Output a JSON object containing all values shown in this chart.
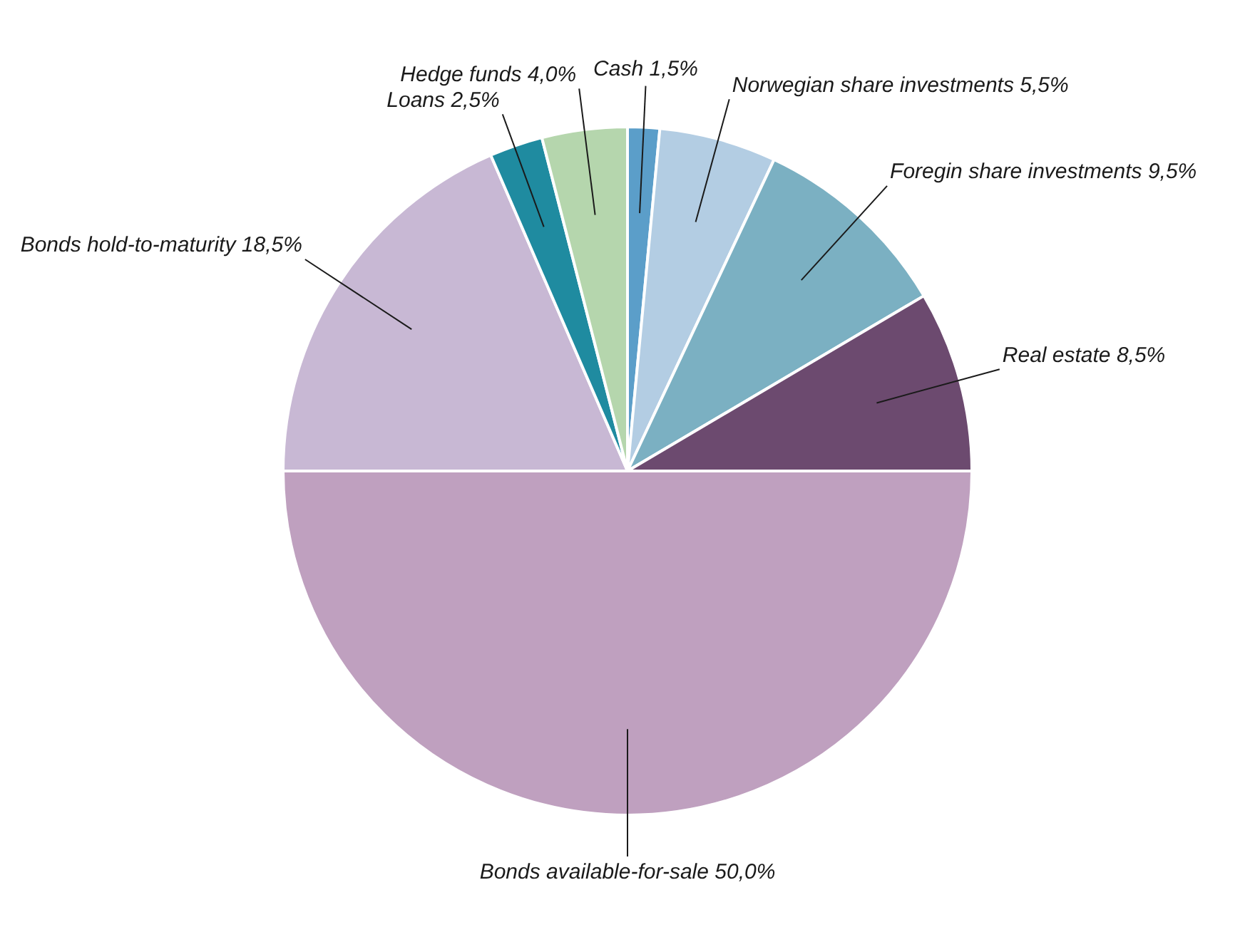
{
  "chart_data": {
    "type": "pie",
    "categories": [
      "Cash",
      "Norwegian share investments",
      "Foregin share investments",
      "Real estate",
      "Bonds available-for-sale",
      "Bonds hold-to-maturity",
      "Loans",
      "Hedge funds"
    ],
    "values": [
      1.5,
      5.5,
      9.5,
      8.5,
      50,
      18.5,
      2.5,
      4
    ],
    "value_labels": [
      "1,5%",
      "5,5%",
      "9,5%",
      "8,5%",
      "50,0%",
      "18,5%",
      "2,5%",
      "4,0%"
    ],
    "colors": [
      "#5b9ec9",
      "#b3cde3",
      "#7bb0c2",
      "#6c4a6f",
      "#bfa0bf",
      "#c8b8d4",
      "#1f8ba0",
      "#b5d6ad"
    ],
    "legend": false
  }
}
